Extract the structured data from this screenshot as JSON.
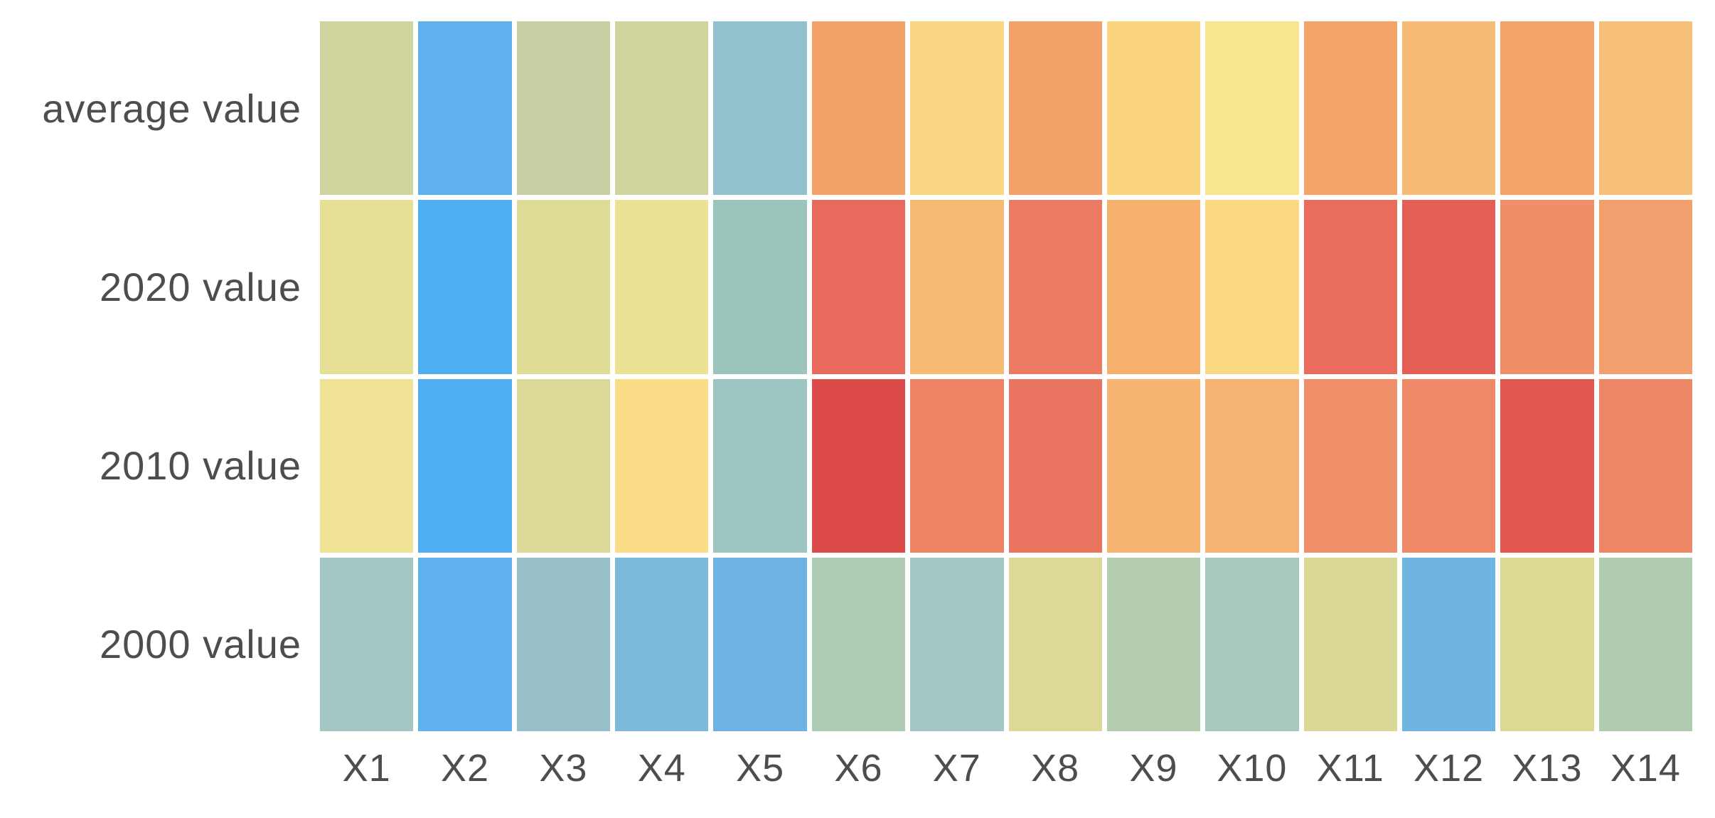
{
  "chart_data": {
    "type": "heatmap",
    "title": "",
    "x_labels": [
      "X1",
      "X2",
      "X3",
      "X4",
      "X5",
      "X6",
      "X7",
      "X8",
      "X9",
      "X10",
      "X11",
      "X12",
      "X13",
      "X14"
    ],
    "y_labels": [
      "average value",
      "2020 value",
      "2010 value",
      "2000 value"
    ],
    "value_encoding": "cell fill color encodes value (blue = low, green/yellow = mid, orange/red = high); no colorbar shown",
    "cell_colors": [
      [
        "#cfd49e",
        "#5fb0ec",
        "#c6d0a2",
        "#cfd49f",
        "#93c2cf",
        "#f3a369",
        "#fbd783",
        "#f1a167",
        "#fbd47e",
        "#f8e68e",
        "#f2a469",
        "#f6bc77",
        "#f2a469",
        "#f7c07a"
      ],
      [
        "#e6e095",
        "#4faef2",
        "#dedb97",
        "#ebe294",
        "#9bc4bc",
        "#e76a5c",
        "#f6bb72",
        "#eb7a63",
        "#f5b06d",
        "#fbd982",
        "#e86d5d",
        "#e45f55",
        "#f08f67",
        "#f29e6d"
      ],
      [
        "#efe295",
        "#4faef2",
        "#dbd998",
        "#fcdd87",
        "#9dc6c3",
        "#dc4b49",
        "#ee8263",
        "#e97560",
        "#f5b471",
        "#f5b272",
        "#f0906a",
        "#ef8968",
        "#e25650",
        "#ee8765"
      ],
      [
        "#a4c7c3",
        "#5fb2ee",
        "#97c0ca",
        "#7db9db",
        "#6db4e5",
        "#aecbb3",
        "#a3c7c5",
        "#dbd995",
        "#b4ccae",
        "#a7c8bd",
        "#d9d897",
        "#6fb5e1",
        "#dcd994",
        "#b1cbb0"
      ]
    ],
    "layout": {
      "legend_position": "none",
      "grid_gap_color": "#ffffff",
      "x_axis_position": "bottom",
      "y_axis_position": "left"
    }
  },
  "styles": {
    "background": "#ffffff",
    "label_color": "#4d4d4d"
  }
}
